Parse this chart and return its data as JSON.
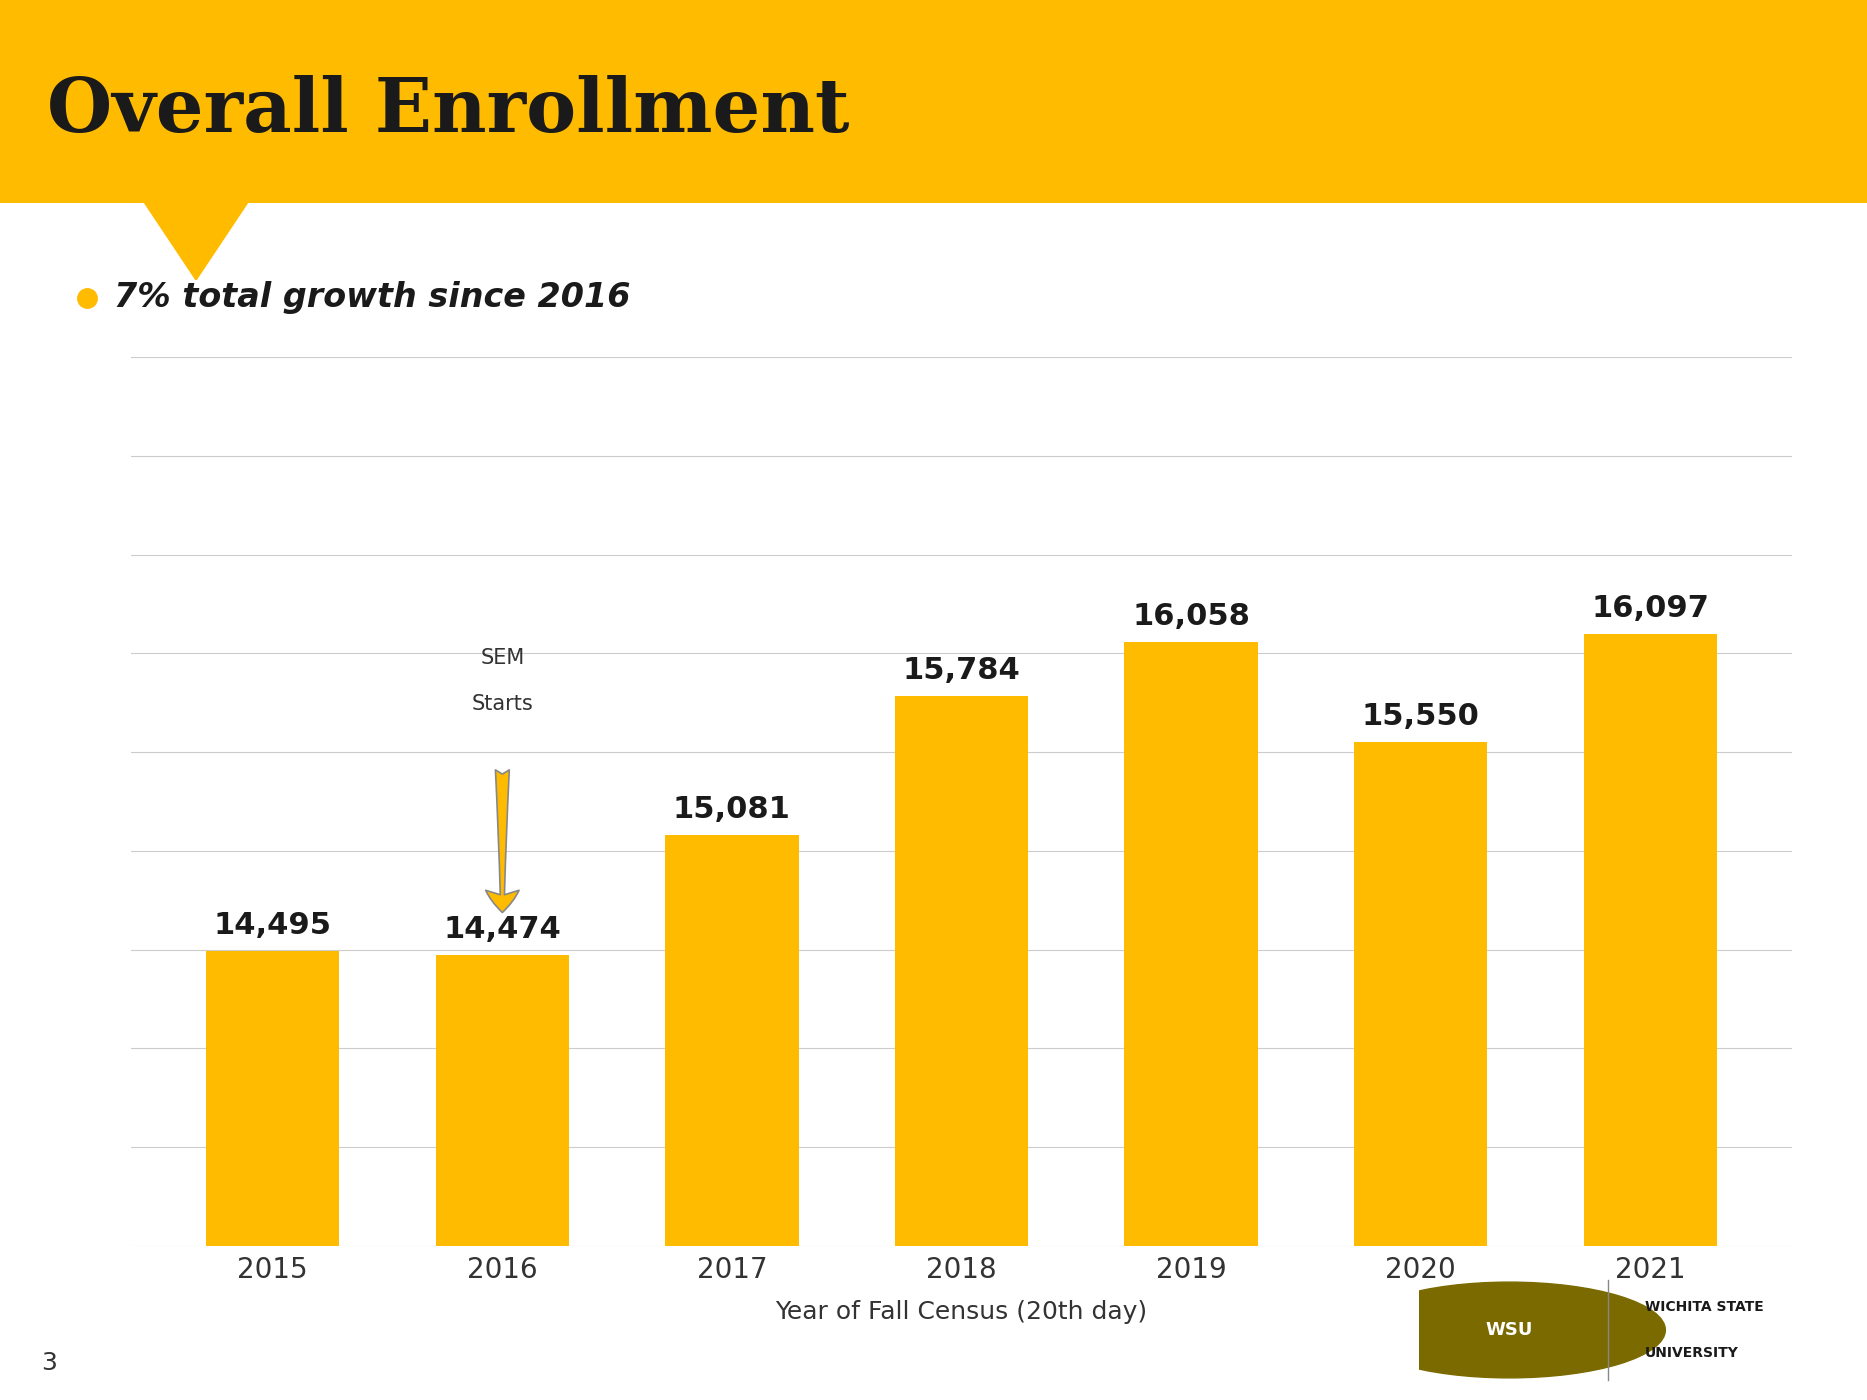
{
  "years": [
    "2015",
    "2016",
    "2017",
    "2018",
    "2019",
    "2020",
    "2021"
  ],
  "values": [
    14495,
    14474,
    15081,
    15784,
    16058,
    15550,
    16097
  ],
  "bar_color": "#FFBB00",
  "background_color": "#FFFFFF",
  "header_color": "#FFBB00",
  "header_text": "Overall Enrollment",
  "header_text_color": "#1a1a1a",
  "bullet_text": "7% total growth since 2016",
  "bullet_color": "#FFBB00",
  "xlabel": "Year of Fall Census (20th day)",
  "sem_annotation_line1": "SEM",
  "sem_annotation_line2": "Starts",
  "arrow_fill_color": "#FFBB00",
  "arrow_edge_color": "#888888",
  "value_labels": [
    "14,495",
    "14,474",
    "15,081",
    "15,784",
    "16,058",
    "15,550",
    "16,097"
  ],
  "ylim_min": 13000,
  "ylim_max": 17500,
  "grid_color": "#cccccc",
  "page_number": "3",
  "title_fontsize": 54,
  "bar_label_fontsize": 22,
  "axis_label_fontsize": 18,
  "tick_fontsize": 20,
  "bullet_fontsize": 24,
  "sem_fontsize": 15
}
